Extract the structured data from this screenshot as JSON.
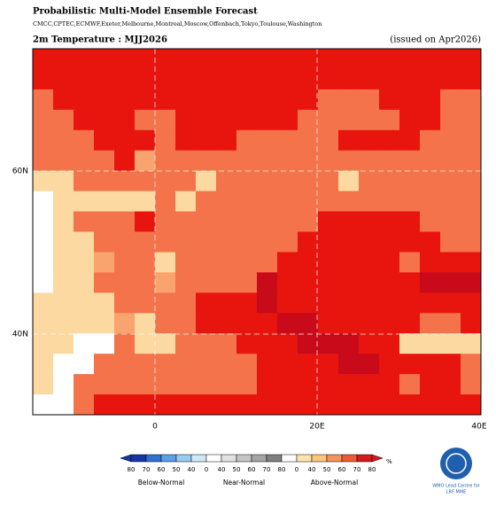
{
  "header": {
    "title": "Probabilistic Multi-Model Ensemble Forecast",
    "models": "CMCC,CPTEC,ECMWF,Exeter,Melbourne,Montreal,Moscow,Offenbach,Tokyo,Toulouse,Washington"
  },
  "panel": {
    "variable": "2m Temperature : MJJ2026",
    "issued": "(issued on Apr2026)"
  },
  "map": {
    "lat_labels": [
      "60N",
      "40N"
    ],
    "lon_labels": [
      "0",
      "20E",
      "40E"
    ]
  },
  "colorbar": {
    "groups": [
      {
        "label": "Below-Normal",
        "ticks": [
          80,
          70,
          60,
          50,
          40
        ]
      },
      {
        "label": "Near-Normal",
        "ticks": [
          0,
          40,
          50,
          60,
          70,
          80
        ]
      },
      {
        "label": "Above-Normal",
        "ticks": [
          0,
          40,
          50,
          60,
          70,
          80
        ]
      }
    ],
    "unit": "%"
  },
  "logo": {
    "line1": "WMO Lead Centre for",
    "line2": "LRF MME"
  }
}
